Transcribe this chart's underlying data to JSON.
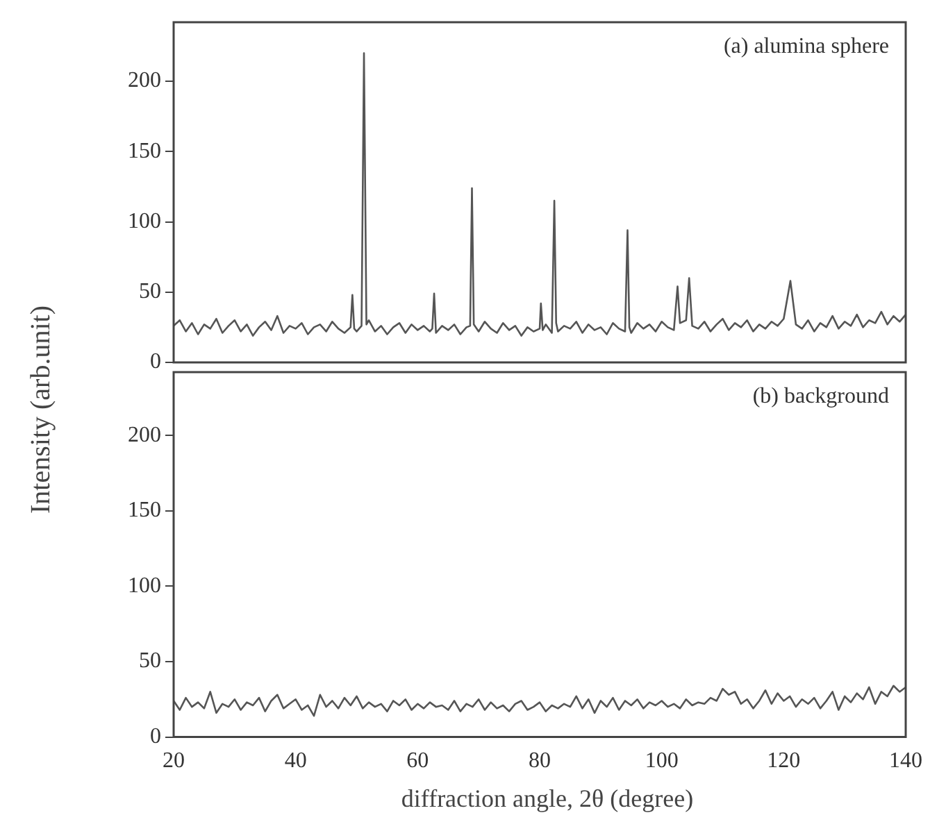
{
  "chart_data": [
    {
      "type": "line",
      "ylabel": "Intensity (arb.unit)",
      "annotations": [
        "(a) alumina sphere"
      ],
      "xlim": [
        20,
        140
      ],
      "ylim": [
        0,
        242
      ],
      "yticks": [
        0,
        50,
        100,
        150,
        200
      ],
      "tick_labels": "y",
      "grid": false,
      "legend": false,
      "marker": "none",
      "line_style": "solid",
      "series": [
        {
          "color": "#555555",
          "x": [
            20,
            21,
            22,
            23,
            24,
            25,
            26,
            27,
            28,
            29,
            30,
            31,
            32,
            33,
            34,
            35,
            36,
            37,
            38,
            39,
            40,
            41,
            42,
            43,
            44,
            45,
            46,
            47,
            48,
            49,
            49.3,
            49.6,
            50,
            50.8,
            51.2,
            51.6,
            52,
            53,
            54,
            55,
            56,
            57,
            58,
            59,
            60,
            61,
            62,
            62.4,
            62.7,
            63,
            64,
            65,
            66,
            67,
            68,
            68.6,
            68.9,
            69.2,
            70,
            71,
            72,
            73,
            74,
            75,
            76,
            77,
            78,
            79,
            80,
            80.2,
            80.5,
            81,
            82,
            82.4,
            82.7,
            83,
            84,
            85,
            86,
            87,
            88,
            89,
            90,
            91,
            92,
            93,
            94,
            94.4,
            94.7,
            95,
            96,
            97,
            98,
            99,
            100,
            101,
            102,
            102.6,
            103,
            104,
            104.5,
            105,
            106,
            107,
            108,
            109,
            110,
            111,
            112,
            113,
            114,
            115,
            116,
            117,
            118,
            119,
            120,
            121.1,
            122,
            123,
            124,
            125,
            126,
            127,
            128,
            129,
            130,
            131,
            132,
            133,
            134,
            135,
            136,
            137,
            138,
            139,
            140
          ],
          "values": [
            26,
            30,
            22,
            28,
            20,
            27,
            24,
            31,
            21,
            26,
            30,
            22,
            27,
            19,
            25,
            29,
            23,
            33,
            21,
            26,
            24,
            28,
            20,
            25,
            27,
            22,
            29,
            24,
            21,
            25,
            48,
            24,
            22,
            26,
            220,
            27,
            30,
            22,
            26,
            20,
            25,
            28,
            21,
            27,
            23,
            26,
            22,
            24,
            49,
            21,
            26,
            23,
            27,
            20,
            25,
            26,
            124,
            27,
            22,
            29,
            24,
            21,
            28,
            23,
            26,
            19,
            25,
            22,
            24,
            42,
            23,
            27,
            21,
            115,
            28,
            22,
            26,
            24,
            29,
            21,
            27,
            23,
            25,
            20,
            28,
            24,
            22,
            94,
            25,
            21,
            28,
            24,
            27,
            22,
            29,
            25,
            23,
            54,
            28,
            30,
            60,
            26,
            24,
            29,
            22,
            27,
            31,
            23,
            28,
            25,
            30,
            22,
            27,
            24,
            29,
            26,
            31,
            58,
            27,
            24,
            30,
            22,
            28,
            25,
            33,
            24,
            29,
            26,
            34,
            25,
            30,
            28,
            36,
            27,
            33,
            29,
            34
          ]
        }
      ]
    },
    {
      "type": "line",
      "xlabel": "diffraction angle, 2θ  (degree)",
      "annotations": [
        "(b) background"
      ],
      "xlim": [
        20,
        140
      ],
      "xticks": [
        20,
        40,
        60,
        80,
        100,
        120,
        140
      ],
      "ylim": [
        0,
        242
      ],
      "yticks": [
        0,
        50,
        100,
        150,
        200
      ],
      "grid": false,
      "legend": false,
      "marker": "none",
      "line_style": "solid",
      "series": [
        {
          "color": "#555555",
          "x": [
            20,
            21,
            22,
            23,
            24,
            25,
            26,
            27,
            28,
            29,
            30,
            31,
            32,
            33,
            34,
            35,
            36,
            37,
            38,
            39,
            40,
            41,
            42,
            43,
            44,
            45,
            46,
            47,
            48,
            49,
            50,
            51,
            52,
            53,
            54,
            55,
            56,
            57,
            58,
            59,
            60,
            61,
            62,
            63,
            64,
            65,
            66,
            67,
            68,
            69,
            70,
            71,
            72,
            73,
            74,
            75,
            76,
            77,
            78,
            79,
            80,
            81,
            82,
            83,
            84,
            85,
            86,
            87,
            88,
            89,
            90,
            91,
            92,
            93,
            94,
            95,
            96,
            97,
            98,
            99,
            100,
            101,
            102,
            103,
            104,
            105,
            106,
            107,
            108,
            109,
            110,
            111,
            112,
            113,
            114,
            115,
            116,
            117,
            118,
            119,
            120,
            121,
            122,
            123,
            124,
            125,
            126,
            127,
            128,
            129,
            130,
            131,
            132,
            133,
            134,
            135,
            136,
            137,
            138,
            139,
            140
          ],
          "values": [
            24,
            18,
            26,
            20,
            23,
            19,
            30,
            16,
            22,
            20,
            25,
            18,
            23,
            21,
            26,
            17,
            24,
            28,
            19,
            22,
            25,
            18,
            21,
            14,
            28,
            20,
            24,
            19,
            26,
            21,
            27,
            19,
            23,
            20,
            22,
            17,
            24,
            21,
            25,
            18,
            22,
            19,
            23,
            20,
            21,
            18,
            24,
            17,
            22,
            20,
            25,
            18,
            23,
            19,
            21,
            17,
            22,
            24,
            18,
            20,
            23,
            17,
            21,
            19,
            22,
            20,
            27,
            19,
            25,
            16,
            24,
            20,
            26,
            18,
            24,
            21,
            25,
            19,
            23,
            21,
            24,
            20,
            22,
            19,
            25,
            21,
            23,
            22,
            26,
            24,
            32,
            28,
            30,
            22,
            25,
            19,
            24,
            31,
            22,
            29,
            24,
            27,
            20,
            25,
            22,
            26,
            19,
            24,
            30,
            18,
            27,
            23,
            29,
            25,
            33,
            22,
            30,
            27,
            34,
            30,
            33
          ]
        }
      ]
    }
  ]
}
